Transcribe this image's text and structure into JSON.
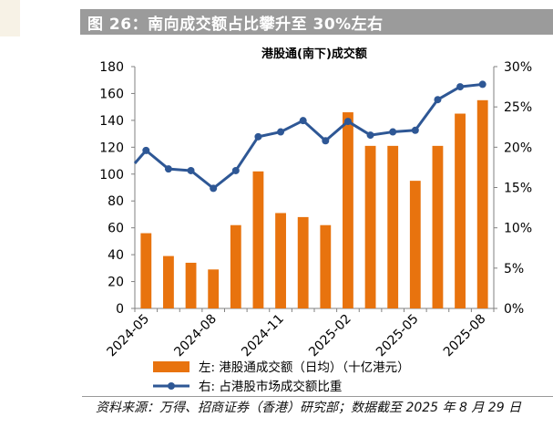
{
  "header": {
    "title": "图 26：南向成交额占比攀升至 30%左右"
  },
  "footer": {
    "source": "资料来源：万得、招商证券（香港）研究部；数据截至 2025 年 8 月 29 日"
  },
  "colors": {
    "bar": "#e8730e",
    "line": "#2e5795",
    "axis": "#808080",
    "banner": "#9b9b9b"
  },
  "chart_data": {
    "type": "bar+line",
    "title": "港股通(南下)成交额",
    "categories": [
      "2024-05",
      "2024-06",
      "2024-07",
      "2024-08",
      "2024-09",
      "2024-10",
      "2024-11",
      "2024-12",
      "2025-01",
      "2025-02",
      "2025-03",
      "2025-04",
      "2025-05",
      "2025-06",
      "2025-07",
      "2025-08"
    ],
    "x_tick_labels": [
      "2024-05",
      "2024-08",
      "2024-11",
      "2025-02",
      "2025-05",
      "2025-08"
    ],
    "x_tick_indices": [
      0,
      3,
      6,
      9,
      12,
      15
    ],
    "left_axis": {
      "min": 0,
      "max": 180,
      "step": 20,
      "ticks": [
        "0",
        "20",
        "40",
        "60",
        "80",
        "100",
        "120",
        "140",
        "160",
        "180"
      ]
    },
    "right_axis": {
      "min": 0,
      "max": 30,
      "step": 5,
      "ticks": [
        "0%",
        "5%",
        "10%",
        "15%",
        "20%",
        "25%",
        "30%"
      ]
    },
    "series": [
      {
        "name": "左:  港股通成交额（日均）（十亿港元）",
        "kind": "bar",
        "axis": "left",
        "values": [
          56,
          39,
          34,
          29,
          62,
          102,
          71,
          68,
          62,
          146,
          121,
          121,
          95,
          121,
          145,
          155
        ]
      },
      {
        "name": "右:  占港股市场成交额比重",
        "kind": "line",
        "axis": "right",
        "x": [
          -0.5,
          0,
          1,
          2,
          3,
          4,
          5,
          6,
          7,
          8,
          9,
          10,
          11,
          12,
          13,
          14,
          15
        ],
        "values": [
          18.0,
          19.6,
          17.3,
          17.1,
          14.9,
          17.1,
          21.3,
          21.9,
          23.3,
          20.8,
          23.2,
          21.5,
          21.9,
          22.1,
          25.9,
          27.5,
          27.8
        ]
      }
    ],
    "legend_position": "bottom"
  }
}
